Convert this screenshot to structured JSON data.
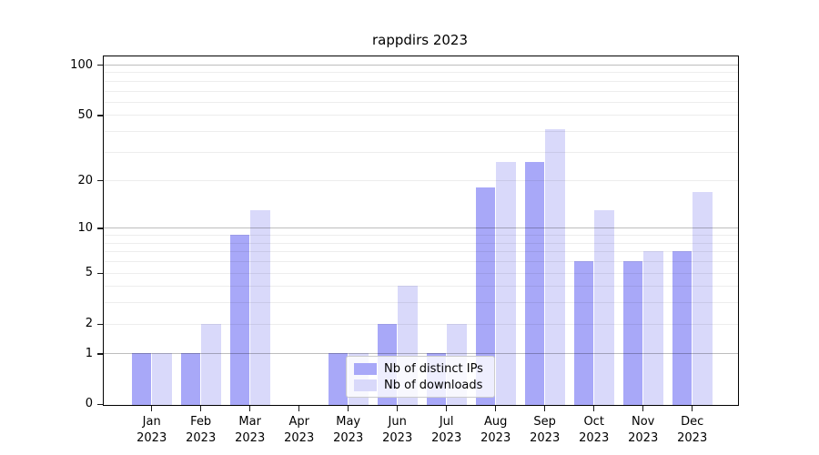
{
  "title": "rappdirs 2023",
  "chart_data": {
    "type": "bar",
    "title": "rappdirs 2023",
    "categories": [
      "Jan 2023",
      "Feb 2023",
      "Mar 2023",
      "Apr 2023",
      "May 2023",
      "Jun 2023",
      "Jul 2023",
      "Aug 2023",
      "Sep 2023",
      "Oct 2023",
      "Nov 2023",
      "Dec 2023"
    ],
    "series": [
      {
        "name": "Nb of distinct IPs",
        "color": "#a8a8f8",
        "values": [
          1,
          1,
          9,
          0,
          1,
          2,
          1,
          18,
          26,
          6,
          6,
          7
        ]
      },
      {
        "name": "Nb of downloads",
        "color": "#d9d9fa",
        "values": [
          1,
          2,
          13,
          0,
          1,
          4,
          2,
          26,
          41,
          13,
          7,
          17
        ]
      }
    ],
    "xlabel": "",
    "ylabel": "",
    "yscale": "log1p",
    "ylim": [
      0,
      112
    ],
    "yticks": [
      0,
      1,
      2,
      5,
      10,
      20,
      50,
      100
    ],
    "grid_minor": [
      2,
      3,
      4,
      5,
      6,
      7,
      8,
      9,
      20,
      30,
      40,
      50,
      60,
      70,
      80,
      90
    ],
    "grid_major": [
      1,
      10,
      100
    ],
    "grid": "on",
    "legend_position": "lower-center-inside"
  }
}
